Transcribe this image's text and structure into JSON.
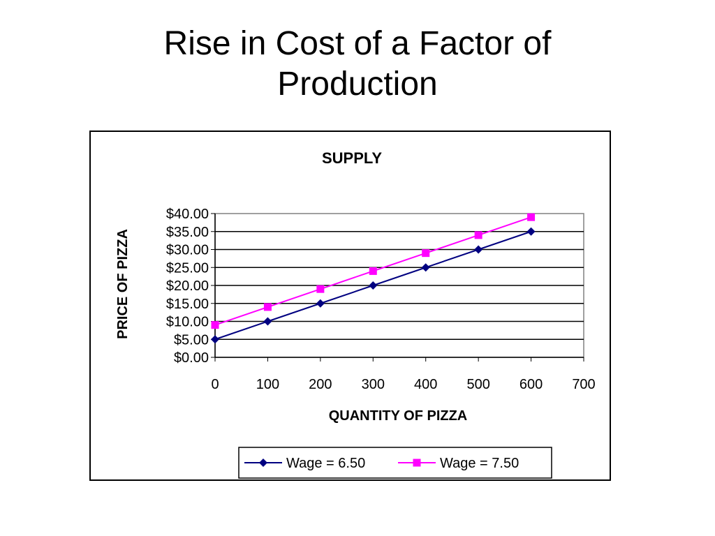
{
  "slide": {
    "title_lines": [
      "Rise in Cost of a Factor of",
      "Production"
    ]
  },
  "chart_data": {
    "type": "line",
    "title": "SUPPLY",
    "xlabel": "QUANTITY OF PIZZA",
    "ylabel": "PRICE OF PIZZA",
    "x": [
      0,
      100,
      200,
      300,
      400,
      500,
      600
    ],
    "xlim": [
      0,
      700
    ],
    "ylim": [
      0,
      40
    ],
    "x_ticks": [
      "0",
      "100",
      "200",
      "300",
      "400",
      "500",
      "600",
      "700"
    ],
    "y_ticks": [
      "$0.00",
      "$5.00",
      "$10.00",
      "$15.00",
      "$20.00",
      "$25.00",
      "$30.00",
      "$35.00",
      "$40.00"
    ],
    "grid": "horizontal",
    "legend_position": "bottom",
    "series": [
      {
        "name": "Wage = 6.50",
        "values": [
          5,
          10,
          15,
          20,
          25,
          30,
          35
        ],
        "color": "#000080",
        "marker": "diamond"
      },
      {
        "name": "Wage = 7.50",
        "values": [
          9,
          14,
          19,
          24,
          29,
          34,
          39
        ],
        "color": "#ff00ff",
        "marker": "square"
      }
    ]
  }
}
